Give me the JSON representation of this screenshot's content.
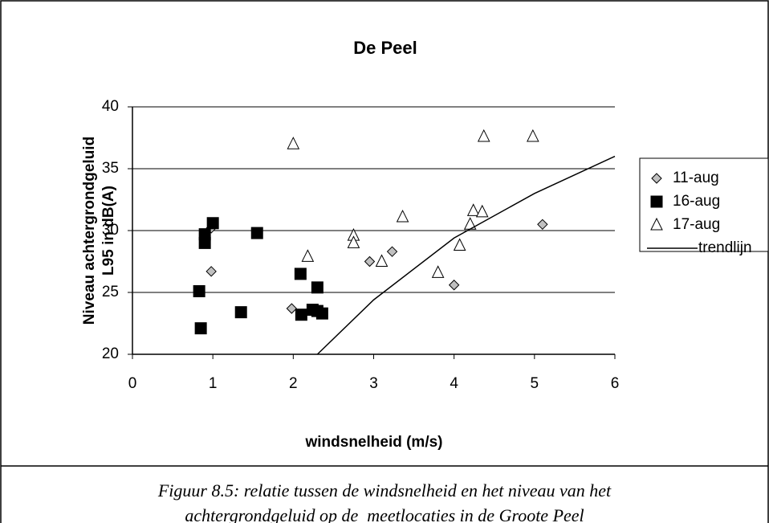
{
  "chart_data": {
    "type": "scatter",
    "title": "De Peel",
    "xlabel": "windsnelheid (m/s)",
    "ylabel": [
      "Niveau achtergrondgeluid",
      "L95 in dB(A)"
    ],
    "xlim": [
      0,
      6
    ],
    "xticks": [
      0,
      1,
      2,
      3,
      4,
      5,
      6
    ],
    "ylim": [
      20,
      40
    ],
    "yticks": [
      20,
      25,
      30,
      35,
      40
    ],
    "grid": true,
    "legend": "right",
    "series": [
      {
        "name": "11-aug",
        "marker": "diamond",
        "color": "#c0c0c0",
        "x": [
          0.98,
          0.98,
          1.98,
          2.95,
          3.23,
          4.0,
          5.1
        ],
        "values": [
          30.2,
          26.7,
          23.7,
          27.5,
          28.3,
          25.6,
          30.5
        ]
      },
      {
        "name": "16-aug",
        "marker": "square",
        "color": "#000000",
        "x": [
          0.83,
          0.85,
          0.9,
          0.9,
          1.0,
          1.35,
          1.55,
          2.09,
          2.1,
          2.24,
          2.3,
          2.3,
          2.36
        ],
        "values": [
          25.1,
          22.1,
          29.7,
          29.0,
          30.6,
          23.4,
          29.8,
          26.5,
          23.2,
          23.6,
          23.5,
          25.4,
          23.3
        ]
      },
      {
        "name": "17-aug",
        "marker": "triangle",
        "color": "#ffffff",
        "x": [
          2.0,
          2.18,
          2.75,
          2.75,
          3.1,
          3.36,
          3.8,
          4.07,
          4.2,
          4.24,
          4.35,
          4.37,
          4.98
        ],
        "values": [
          37.0,
          27.9,
          29.6,
          29.0,
          27.5,
          31.1,
          26.6,
          28.8,
          30.5,
          31.6,
          31.5,
          37.6,
          37.6
        ]
      },
      {
        "name": "trendlijn",
        "marker": "line",
        "color": "#000000",
        "x": [
          2.3,
          3,
          4,
          5,
          6
        ],
        "values": [
          20,
          24.4,
          29.4,
          33.0,
          36.0
        ]
      }
    ]
  },
  "caption": [
    "Figuur 8.5: relatie tussen de windsnelheid en het niveau van het",
    "achtergrondgeluid op de  meetlocaties in de Groote Peel"
  ]
}
